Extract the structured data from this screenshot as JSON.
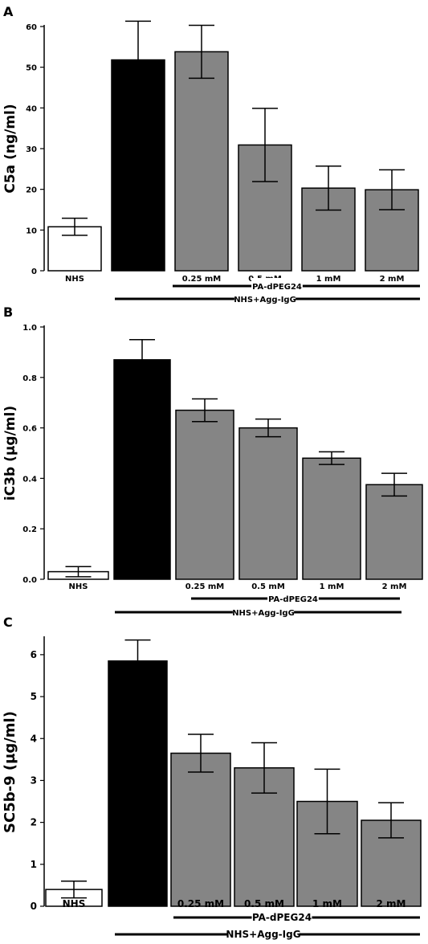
{
  "chart_data": [
    {
      "type": "bar",
      "panel_label": "A",
      "ylabel": "C5a (ng/ml)",
      "ylim": [
        0,
        60
      ],
      "yticks": [
        "0",
        "10",
        "20",
        "30",
        "40",
        "50",
        "60"
      ],
      "categories": [
        "NHS",
        "",
        "0.25 mM",
        "0.5 mM",
        "1 mM",
        "2 mM"
      ],
      "values": [
        10.8,
        51.8,
        53.8,
        30.9,
        20.3,
        19.9
      ],
      "errors": [
        2.1,
        9.5,
        6.5,
        9.0,
        5.4,
        4.9
      ],
      "bar_fills": [
        "white",
        "black",
        "gray",
        "gray",
        "gray",
        "gray"
      ],
      "group_labels": {
        "inner": "PA-dPEG24",
        "outer": "NHS+Agg-IgG"
      }
    },
    {
      "type": "bar",
      "panel_label": "B",
      "ylabel": "iC3b (µg/ml)",
      "ylim": [
        0,
        1.0
      ],
      "yticks": [
        "0.0",
        "0.2",
        "0.4",
        "0.6",
        "0.8",
        "1.0"
      ],
      "categories": [
        "NHS",
        "",
        "0.25 mM",
        "0.5 mM",
        "1 mM",
        "2 mM"
      ],
      "values": [
        0.03,
        0.87,
        0.67,
        0.6,
        0.48,
        0.375
      ],
      "errors": [
        0.02,
        0.08,
        0.045,
        0.035,
        0.025,
        0.045
      ],
      "bar_fills": [
        "white",
        "black",
        "gray",
        "gray",
        "gray",
        "gray"
      ],
      "group_labels": {
        "inner": "PA-dPEG24",
        "outer": "NHS+Agg-IgG"
      }
    },
    {
      "type": "bar",
      "panel_label": "C",
      "ylabel": "SC5b-9 (µg/ml)",
      "ylim": [
        0,
        6.4
      ],
      "yticks": [
        "0",
        "1",
        "2",
        "3",
        "4",
        "5",
        "6"
      ],
      "categories": [
        "NHS",
        "",
        "0.25 mM",
        "0.5 mM",
        "1 mM",
        "2 mM"
      ],
      "values": [
        0.4,
        5.85,
        3.65,
        3.3,
        2.5,
        2.05
      ],
      "errors": [
        0.2,
        0.5,
        0.45,
        0.6,
        0.77,
        0.42
      ],
      "bar_fills": [
        "white",
        "black",
        "gray",
        "gray",
        "gray",
        "gray"
      ],
      "group_labels": {
        "inner": "PA-dPEG24",
        "outer": "NHS+Agg-IgG"
      }
    }
  ],
  "colors": {
    "white_bar": "#ffffff",
    "black_bar": "#000000",
    "gray_bar": "#858585",
    "axis": "#000000"
  }
}
